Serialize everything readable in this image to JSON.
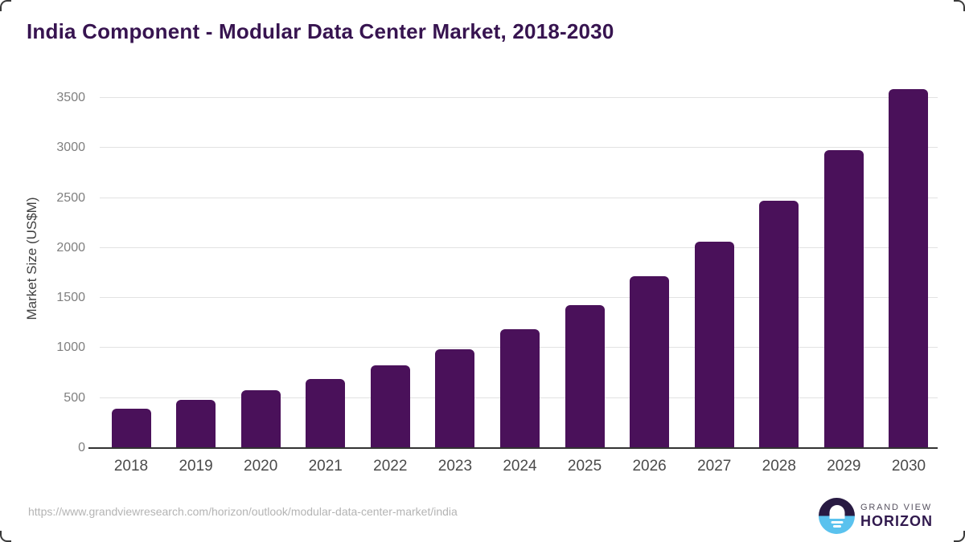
{
  "header": {
    "title": "India Component - Modular Data Center Market, 2018-2030"
  },
  "chart_data": {
    "type": "bar",
    "title": "India Component - Modular Data Center Market, 2018-2030",
    "categories": [
      "2018",
      "2019",
      "2020",
      "2021",
      "2022",
      "2023",
      "2024",
      "2025",
      "2026",
      "2027",
      "2028",
      "2029",
      "2030"
    ],
    "values": [
      395,
      480,
      575,
      690,
      830,
      990,
      1190,
      1430,
      1720,
      2060,
      2475,
      2975,
      3590
    ],
    "xlabel": "",
    "ylabel": "Market Size (US$M)",
    "ylim": [
      0,
      3500
    ],
    "yticks": [
      0,
      500,
      1000,
      1500,
      2000,
      2500,
      3000,
      3500
    ],
    "grid": "horizontal-light",
    "legend": "none",
    "bar_color": "#4a115a",
    "units": "US$M"
  },
  "footer": {
    "source_url": "https://www.grandviewresearch.com/horizon/outlook/modular-data-center-market/india",
    "brand": {
      "name_top": "GRAND VIEW",
      "name_bottom": "HORIZON",
      "logo_icon": "sunrise-horizon-icon"
    }
  },
  "colors": {
    "bar": "#4a115a",
    "title": "#371450",
    "axis_line": "#333333",
    "gridline": "#e2e2e2",
    "y_tick_label": "#7f7f7f",
    "x_tick_label": "#4a4a4a",
    "url_text": "#b4b4b4",
    "logo_dark": "#281a42",
    "logo_blue": "#5ac2ee",
    "brand_top_text": "#56515f",
    "brand_bottom_text": "#311a4e"
  }
}
